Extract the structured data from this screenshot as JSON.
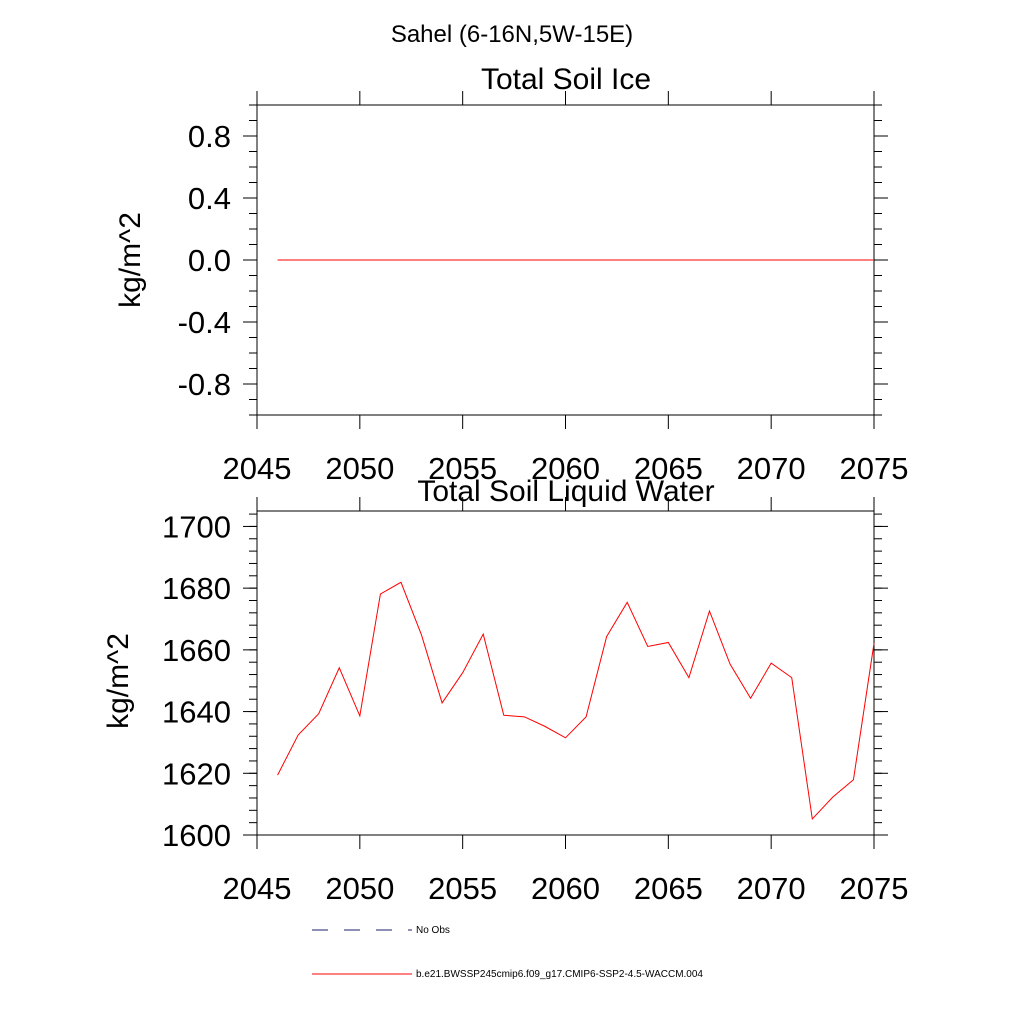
{
  "figure": {
    "suptitle": "Sahel (6-16N,5W-15E)"
  },
  "chart_data": [
    {
      "type": "line",
      "title": "Total Soil Ice",
      "xlabel": "",
      "ylabel": "kg/m^2",
      "xlim": [
        2045,
        2075
      ],
      "ylim": [
        -1.0,
        1.0
      ],
      "xticks": [
        2045,
        2050,
        2055,
        2060,
        2065,
        2070,
        2075
      ],
      "xtick_labels": [
        "2045",
        "2050",
        "2055",
        "2060",
        "2065",
        "2070",
        "2075"
      ],
      "yticks": [
        0.8,
        0.4,
        0.0,
        -0.4,
        -0.8
      ],
      "ytick_labels": [
        "0.8",
        "0.4",
        "0.0",
        "-0.4",
        "-0.8"
      ],
      "grid": false,
      "series": [
        {
          "color": "#ff0000",
          "x": [
            2046,
            2047,
            2048,
            2049,
            2050,
            2051,
            2052,
            2053,
            2054,
            2055,
            2056,
            2057,
            2058,
            2059,
            2060,
            2061,
            2062,
            2063,
            2064,
            2065,
            2066,
            2067,
            2068,
            2069,
            2070,
            2071,
            2072,
            2073,
            2074,
            2075
          ],
          "y": [
            0,
            0,
            0,
            0,
            0,
            0,
            0,
            0,
            0,
            0,
            0,
            0,
            0,
            0,
            0,
            0,
            0,
            0,
            0,
            0,
            0,
            0,
            0,
            0,
            0,
            0,
            0,
            0,
            0,
            0
          ]
        }
      ]
    },
    {
      "type": "line",
      "title": "Total Soil Liquid Water",
      "xlabel": "",
      "ylabel": "kg/m^2",
      "xlim": [
        2045,
        2075
      ],
      "ylim": [
        1600,
        1705
      ],
      "xticks": [
        2045,
        2050,
        2055,
        2060,
        2065,
        2070,
        2075
      ],
      "xtick_labels": [
        "2045",
        "2050",
        "2055",
        "2060",
        "2065",
        "2070",
        "2075"
      ],
      "yticks": [
        1700,
        1680,
        1660,
        1640,
        1620,
        1600
      ],
      "ytick_labels": [
        "1700",
        "1680",
        "1660",
        "1640",
        "1620",
        "1600"
      ],
      "grid": false,
      "series": [
        {
          "color": "#ff0000",
          "x": [
            2046,
            2047,
            2048,
            2049,
            2050,
            2051,
            2052,
            2053,
            2054,
            2055,
            2056,
            2057,
            2058,
            2059,
            2060,
            2061,
            2062,
            2063,
            2064,
            2065,
            2066,
            2067,
            2068,
            2069,
            2070,
            2071,
            2072,
            2073,
            2074,
            2075
          ],
          "y": [
            1619.4,
            1632.4,
            1639.3,
            1654.2,
            1638.6,
            1678.1,
            1681.9,
            1664.8,
            1642.8,
            1652.6,
            1665.1,
            1638.8,
            1638.3,
            1635.2,
            1631.5,
            1638.3,
            1664.3,
            1675.4,
            1661.1,
            1662.4,
            1651.0,
            1672.6,
            1655.4,
            1644.3,
            1655.7,
            1651.0,
            1605.2,
            1612.3,
            1617.9,
            1662.1
          ]
        }
      ]
    }
  ],
  "legend": {
    "placement": "bottom",
    "entries": [
      {
        "label": "No Obs",
        "color": "#1f1f6e",
        "style": "dashed"
      },
      {
        "label": "b.e21.BWSSP245cmip6.f09_g17.CMIP6-SSP2-4.5-WACCM.004",
        "color": "#ff0000",
        "style": "solid"
      }
    ]
  }
}
